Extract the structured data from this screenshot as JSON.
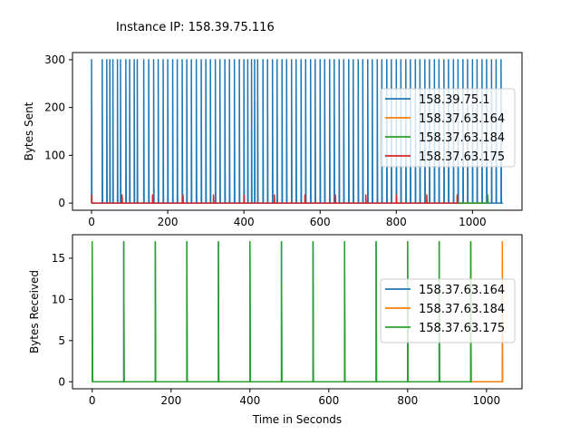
{
  "chart_data": [
    {
      "type": "line",
      "title": "Instance IP: 158.39.75.116",
      "xlabel": "",
      "ylabel": "Bytes Sent",
      "xlim": [
        -50,
        1130
      ],
      "ylim": [
        -15,
        315
      ],
      "xticks": [
        0,
        200,
        400,
        600,
        800,
        1000
      ],
      "yticks": [
        0,
        100,
        200,
        300
      ],
      "legend_position": "center-right",
      "series": [
        {
          "name": "158.39.75.1",
          "color": "#1f77b4",
          "spike_value": 300,
          "x_end": 1080,
          "spike_times": [
            0,
            28,
            40,
            48,
            56,
            68,
            76,
            90,
            100,
            112,
            120,
            137,
            150,
            163,
            175,
            188,
            200,
            213,
            225,
            238,
            250,
            262,
            275,
            288,
            300,
            312,
            325,
            337,
            350,
            362,
            375,
            388,
            400,
            410,
            420,
            428,
            436,
            450,
            462,
            475,
            487,
            500,
            512,
            525,
            537,
            550,
            562,
            575,
            587,
            600,
            612,
            625,
            637,
            650,
            662,
            675,
            687,
            700,
            712,
            725,
            737,
            750,
            762,
            775,
            787,
            800,
            812,
            825,
            837,
            850,
            862,
            875,
            887,
            900,
            912,
            925,
            937,
            950,
            962,
            975,
            987,
            1000,
            1012,
            1025,
            1037,
            1050,
            1062,
            1075
          ]
        },
        {
          "name": "158.37.63.164",
          "color": "#ff7f0e",
          "spike_value": 17,
          "x_start": 960,
          "x_end": 1040,
          "spike_times": [
            960,
            1040
          ]
        },
        {
          "name": "158.37.63.184",
          "color": "#2ca02c",
          "spike_value": 17,
          "x_start": 960,
          "x_end": 1040,
          "spike_times": [
            960,
            1040
          ]
        },
        {
          "name": "158.37.63.175",
          "color": "#d62728",
          "spike_value": 17,
          "x_start": 0,
          "x_end": 960,
          "spike_times": [
            0,
            80,
            160,
            240,
            320,
            400,
            480,
            560,
            640,
            720,
            800,
            880,
            960
          ]
        }
      ]
    },
    {
      "type": "line",
      "title": "",
      "xlabel": "Time in Seconds",
      "ylabel": "Bytes Received",
      "xlim": [
        -50,
        1090
      ],
      "ylim": [
        -0.85,
        17.85
      ],
      "xticks": [
        0,
        200,
        400,
        600,
        800,
        1000
      ],
      "yticks": [
        0,
        5,
        10,
        15
      ],
      "legend_position": "center-right",
      "series": [
        {
          "name": "158.37.63.164",
          "color": "#1f77b4",
          "spike_value": 17,
          "x_start": 0,
          "x_end": 960,
          "spike_times": [
            0,
            80,
            160,
            240,
            320,
            400,
            480,
            560,
            640,
            720,
            800,
            880,
            960
          ]
        },
        {
          "name": "158.37.63.184",
          "color": "#ff7f0e",
          "spike_value": 17,
          "x_start": 960,
          "x_end": 1040,
          "spike_times": [
            960,
            1040
          ]
        },
        {
          "name": "158.37.63.175",
          "color": "#2ca02c",
          "spike_value": 17,
          "x_start": 0,
          "x_end": 960,
          "spike_times": [
            0,
            80,
            160,
            240,
            320,
            400,
            480,
            560,
            640,
            720,
            800,
            880,
            960
          ]
        }
      ]
    }
  ]
}
